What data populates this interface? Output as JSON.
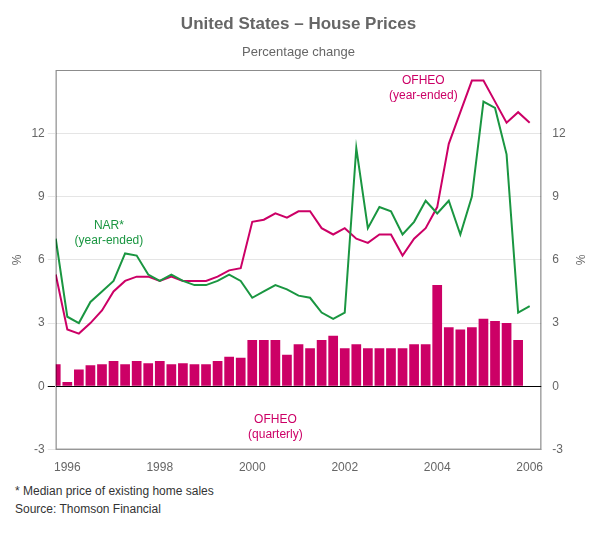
{
  "chart_data": {
    "type": "bar",
    "title": "United States – House Prices",
    "subtitle": "Percentage change",
    "ylabel": "%",
    "y2label": "%",
    "footnotes": [
      "*  Median price of existing home sales",
      "Source: Thomson Financial"
    ],
    "xlim": [
      1995.75,
      2006.25
    ],
    "xticks": [
      1996,
      1998,
      2000,
      2002,
      2004,
      2006
    ],
    "ylim": [
      -3,
      15
    ],
    "yticks": [
      -3,
      0,
      3,
      6,
      9,
      12
    ],
    "y2lim": [
      -3,
      15
    ],
    "y2ticks": [
      -3,
      0,
      3,
      6,
      9,
      12
    ],
    "grid": "y",
    "annotations": [
      {
        "text": "NAR*\n(year-ended)",
        "x": 1996.9,
        "y": 7.9,
        "color": "#1a9641"
      },
      {
        "text": "OFHEO\n(year-ended)",
        "x": 2003.7,
        "y": 14.8,
        "color": "#cc0066"
      },
      {
        "text": "OFHEO\n(quarterly)",
        "x": 2000.5,
        "y": -1.3,
        "color": "#cc0066"
      }
    ],
    "series": [
      {
        "type": "bar",
        "color": "#cc0066",
        "x": [
          1995.75,
          1996.0,
          1996.25,
          1996.5,
          1996.75,
          1997.0,
          1997.25,
          1997.5,
          1997.75,
          1998.0,
          1998.25,
          1998.5,
          1998.75,
          1999.0,
          1999.25,
          1999.5,
          1999.75,
          2000.0,
          2000.25,
          2000.5,
          2000.75,
          2001.0,
          2001.25,
          2001.5,
          2001.75,
          2002.0,
          2002.25,
          2002.5,
          2002.75,
          2003.0,
          2003.25,
          2003.5,
          2003.75,
          2004.0,
          2004.25,
          2004.5,
          2004.75,
          2005.0,
          2005.25,
          2005.5,
          2005.75
        ],
        "values": [
          1.05,
          0.2,
          0.8,
          1.0,
          1.05,
          1.2,
          1.05,
          1.2,
          1.1,
          1.2,
          1.05,
          1.1,
          1.05,
          1.05,
          1.2,
          1.4,
          1.35,
          2.2,
          2.2,
          2.2,
          1.5,
          2.0,
          1.8,
          2.2,
          2.4,
          1.8,
          2.0,
          1.8,
          1.8,
          1.8,
          1.8,
          2.0,
          2.0,
          4.8,
          2.8,
          2.7,
          2.8,
          3.2,
          3.1,
          3.0,
          2.2
        ]
      },
      {
        "type": "line",
        "color": "#1a9641",
        "marker": "none",
        "x": [
          1995.75,
          1996.0,
          1996.25,
          1996.5,
          1996.75,
          1997.0,
          1997.25,
          1997.5,
          1997.75,
          1998.0,
          1998.25,
          1998.5,
          1998.75,
          1999.0,
          1999.25,
          1999.5,
          1999.75,
          2000.0,
          2000.25,
          2000.5,
          2000.75,
          2001.0,
          2001.25,
          2001.5,
          2001.75,
          2002.0,
          2002.25,
          2002.5,
          2002.75,
          2003.0,
          2003.25,
          2003.5,
          2003.75,
          2004.0,
          2004.25,
          2004.5,
          2004.75,
          2005.0,
          2005.25,
          2005.5,
          2005.75,
          2006.0
        ],
        "values": [
          7.0,
          3.3,
          3.0,
          4.0,
          4.5,
          5.0,
          6.3,
          6.2,
          5.3,
          5.0,
          5.3,
          5.0,
          4.8,
          4.8,
          5.0,
          5.3,
          5.0,
          4.2,
          4.5,
          4.8,
          4.6,
          4.3,
          4.2,
          3.5,
          3.2,
          3.5,
          11.3,
          7.5,
          8.5,
          8.3,
          7.2,
          7.8,
          8.8,
          8.2,
          8.8,
          7.2,
          9.0,
          13.5,
          13.2,
          11.0,
          3.5,
          3.8
        ]
      },
      {
        "type": "line",
        "color": "#cc0066",
        "marker": "none",
        "x": [
          1995.75,
          1996.0,
          1996.25,
          1996.5,
          1996.75,
          1997.0,
          1997.25,
          1997.5,
          1997.75,
          1998.0,
          1998.25,
          1998.5,
          1998.75,
          1999.0,
          1999.25,
          1999.5,
          1999.75,
          2000.0,
          2000.25,
          2000.5,
          2000.75,
          2001.0,
          2001.25,
          2001.5,
          2001.75,
          2002.0,
          2002.25,
          2002.5,
          2002.75,
          2003.0,
          2003.25,
          2003.5,
          2003.75,
          2004.0,
          2004.25,
          2004.5,
          2004.75,
          2005.0,
          2005.25,
          2005.5,
          2005.75,
          2006.0
        ],
        "values": [
          5.3,
          2.7,
          2.5,
          3.0,
          3.6,
          4.5,
          5.0,
          5.2,
          5.2,
          5.0,
          5.2,
          5.0,
          5.0,
          5.0,
          5.2,
          5.5,
          5.6,
          7.8,
          7.9,
          8.2,
          8.0,
          8.3,
          8.3,
          7.5,
          7.2,
          7.5,
          7.0,
          6.8,
          7.2,
          7.2,
          6.2,
          7.0,
          7.5,
          8.5,
          11.5,
          13.0,
          14.5,
          14.5,
          13.5,
          12.5,
          13.0,
          12.5
        ]
      }
    ]
  }
}
